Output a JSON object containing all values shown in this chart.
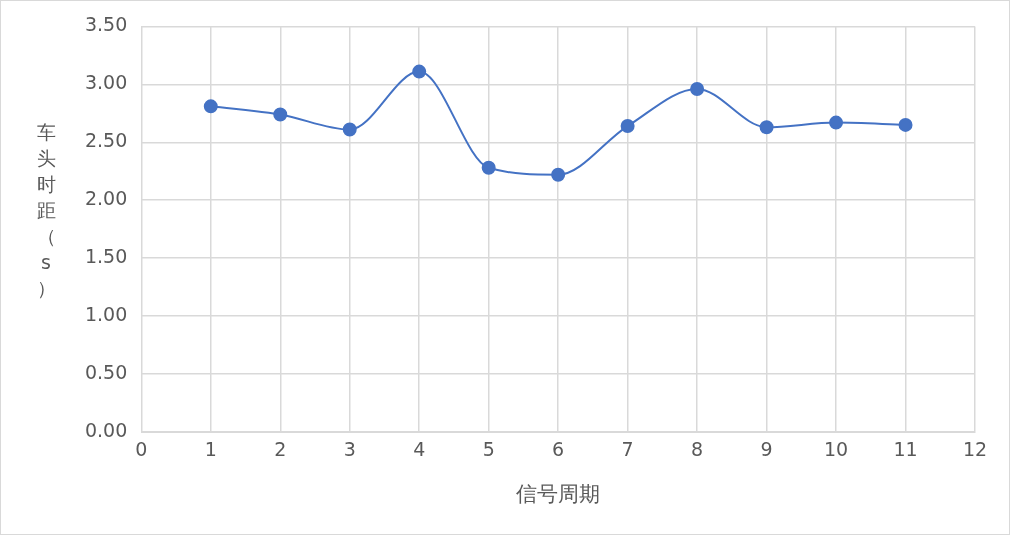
{
  "chart_data": {
    "type": "line",
    "xlabel": "信号周期",
    "ylabel": "车头时距（s）",
    "x": [
      1,
      2,
      3,
      4,
      5,
      6,
      7,
      8,
      9,
      10,
      11
    ],
    "series": [
      {
        "color": "#4472c4",
        "values": [
          2.81,
          2.74,
          2.61,
          3.11,
          2.28,
          2.22,
          2.64,
          2.96,
          2.63,
          2.67,
          2.65
        ]
      }
    ],
    "xlim": [
      0,
      12
    ],
    "xticks": [
      0,
      1,
      2,
      3,
      4,
      5,
      6,
      7,
      8,
      9,
      10,
      11,
      12
    ],
    "ylim": [
      0,
      3.5
    ],
    "yticks": [
      {
        "value": 0,
        "label": "0.00"
      },
      {
        "value": 0.5,
        "label": "0.50"
      },
      {
        "value": 1,
        "label": "1.00"
      },
      {
        "value": 1.5,
        "label": "1.50"
      },
      {
        "value": 2,
        "label": "2.00"
      },
      {
        "value": 2.5,
        "label": "2.50"
      },
      {
        "value": 3,
        "label": "3.00"
      },
      {
        "value": 3.5,
        "label": "3.50"
      }
    ],
    "grid": true,
    "legend": false,
    "marker": "circle",
    "line_style": "solid"
  }
}
